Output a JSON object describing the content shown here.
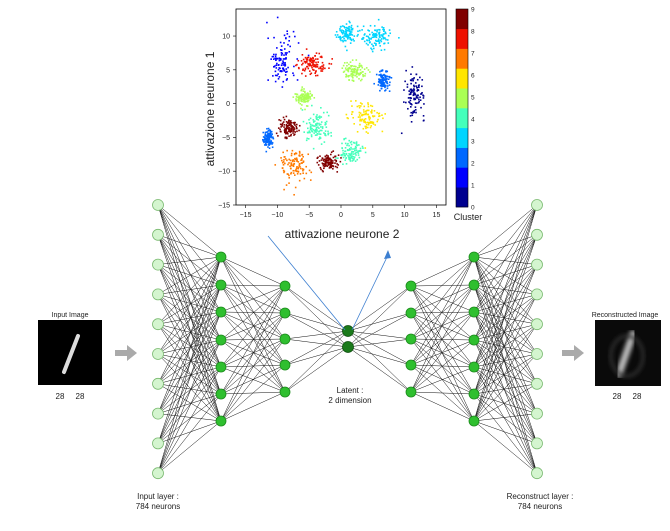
{
  "scatter": {
    "ylabel": "attivazione neurone 1",
    "xlabel": "attivazione neurone 2",
    "x_ticks": [
      "−15",
      "−10",
      "−5",
      "0",
      "5",
      "10",
      "15"
    ],
    "y_ticks": [
      "10",
      "5",
      "0",
      "−5",
      "−10",
      "−15"
    ],
    "colorbar_ticks": [
      "9",
      "8",
      "7",
      "6",
      "5",
      "4",
      "3",
      "2",
      "1",
      "0"
    ],
    "colorbar_label": "Cluster",
    "colors": [
      "#00008f",
      "#0000ff",
      "#0068ff",
      "#00d5ff",
      "#44ffbb",
      "#aaff55",
      "#ffe600",
      "#ff7a00",
      "#ee1100",
      "#800000"
    ]
  },
  "input": {
    "title": "Input Image",
    "dim_w": "28",
    "dim_h": "28",
    "layer_label_1": "Input layer :",
    "layer_label_2": "784 neurons"
  },
  "latent": {
    "label_1": "Latent :",
    "label_2": "2 dimension"
  },
  "output": {
    "title": "Reconstructed Image",
    "dim_w": "28",
    "dim_h": "28",
    "layer_label_1": "Reconstruct layer :",
    "layer_label_2": "784 neurons"
  },
  "network": {
    "layer_sizes": [
      10,
      7,
      5,
      2,
      5,
      7,
      10
    ],
    "node_light": "#d4f5cf",
    "node_mid": "#2fbf2f",
    "node_dark": "#1a7a1a"
  }
}
